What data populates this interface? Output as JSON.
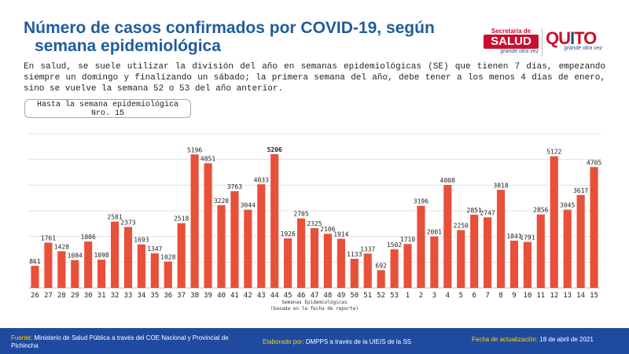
{
  "header": {
    "title_line1": "Número de casos confirmados por COVID-19, según",
    "title_line2": "semana epidemiológica",
    "description": "En salud, se suele utilizar la división del año en semanas epidemiológicas (SE) que tienen 7 días, empezando siempre un domingo y finalizando un sábado; la primera semana del año, debe tener a los menos 4 días de enero, sino se vuelve la semana 52 o 53 del año anterior.",
    "until_line1": "Hasta la semana epidemiológica",
    "until_line2": "Nro. 15"
  },
  "logos": {
    "salud_top": "Secretaría de",
    "salud_main": "SALUD",
    "salud_sub": "grande otra vez",
    "quito_q": "QU",
    "quito_i": "I",
    "quito_to": "TO",
    "quito_sub": "grande otra vez"
  },
  "chart_data": {
    "type": "bar",
    "categories": [
      "26",
      "27",
      "28",
      "29",
      "30",
      "31",
      "32",
      "33",
      "34",
      "35",
      "36",
      "37",
      "38",
      "39",
      "40",
      "41",
      "42",
      "43",
      "44",
      "45",
      "46",
      "47",
      "48",
      "49",
      "50",
      "51",
      "52",
      "53",
      "1",
      "2",
      "3",
      "4",
      "5",
      "6",
      "7",
      "8",
      "9",
      "10",
      "11",
      "12",
      "13",
      "14",
      "15"
    ],
    "values": [
      861,
      1761,
      1428,
      1084,
      1806,
      1098,
      2581,
      2373,
      1693,
      1347,
      1028,
      2518,
      5196,
      4851,
      3220,
      3763,
      3044,
      4033,
      5206,
      1926,
      2705,
      2325,
      2106,
      1914,
      1133,
      1337,
      692,
      1502,
      1710,
      3196,
      2001,
      4008,
      2250,
      2851,
      2747,
      3818,
      1841,
      1791,
      2856,
      5122,
      3045,
      3617,
      4705
    ],
    "bold_labels": [
      "5206"
    ],
    "xlabel_line1": "Semanas Epidemiológicas",
    "xlabel_line2": "(basada en la fecha de reporte)",
    "ylim": [
      0,
      6000
    ],
    "grid": true,
    "bar_color": "#e8503a"
  },
  "footer": {
    "fuente_label": "Fuente:",
    "fuente_text": "Ministerio de Salud Pública a través del COE Nacional y Provincial de Pichincha",
    "elaborado_label": "Elaborado por:",
    "elaborado_text": "DMPPS a través de la UIEIS de la SS",
    "fecha_label": "Fecha de actualización:",
    "fecha_text": "18 de abril de 2021"
  }
}
